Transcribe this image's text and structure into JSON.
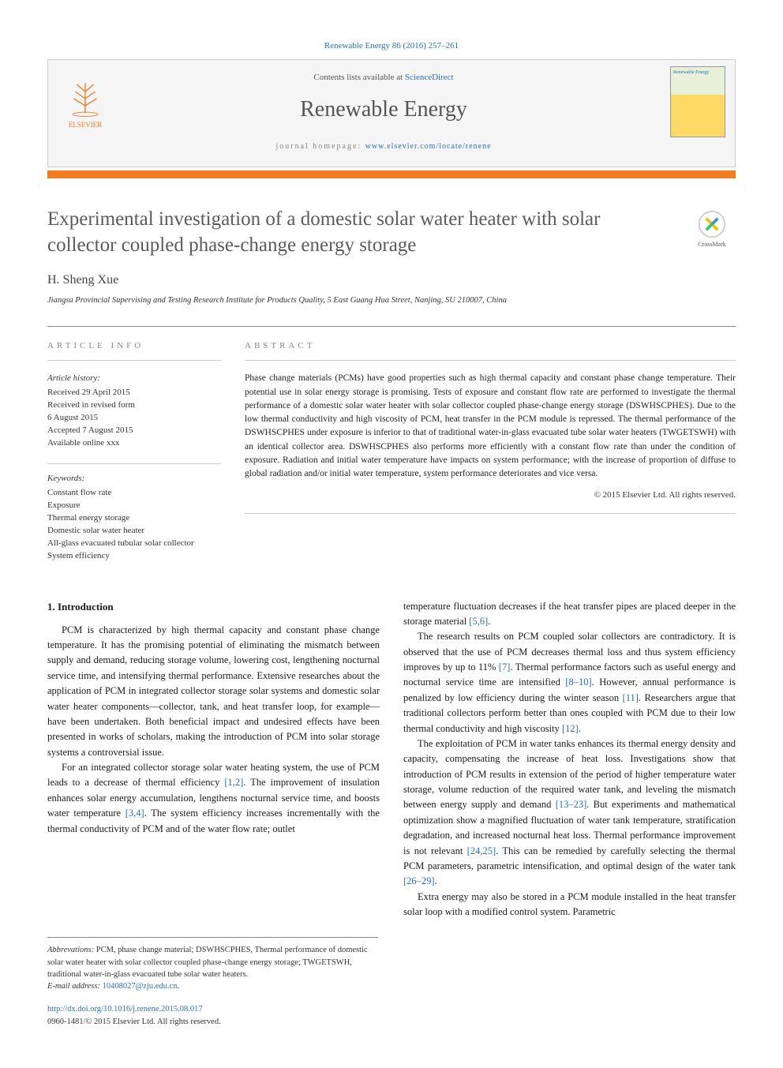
{
  "citation": {
    "text": "Renewable Energy 86 (2016) 257–261",
    "link_color": "#2a6fb5"
  },
  "header": {
    "contents_prefix": "Contents lists available at ",
    "contents_link": "ScienceDirect",
    "journal_name": "Renewable Energy",
    "homepage_prefix": "journal homepage: ",
    "homepage_link": "www.elsevier.com/locate/renene",
    "publisher_logo_label": "ELSEVIER",
    "cover_label": "Renewable Energy"
  },
  "article": {
    "title": "Experimental investigation of a domestic solar water heater with solar collector coupled phase-change energy storage",
    "crossmark_label": "CrossMark",
    "author": "H. Sheng Xue",
    "affiliation": "Jiangsu Provincial Supervising and Testing Research Institute for Products Quality, 5 East Guang Hua Street, Nanjing, SU 210007, China"
  },
  "info": {
    "heading": "ARTICLE INFO",
    "history_label": "Article history:",
    "history": [
      "Received 29 April 2015",
      "Received in revised form",
      "6 August 2015",
      "Accepted 7 August 2015",
      "Available online xxx"
    ],
    "keywords_label": "Keywords:",
    "keywords": [
      "Constant flow rate",
      "Exposure",
      "Thermal energy storage",
      "Domestic solar water heater",
      "All-glass evacuated tubular solar collector",
      "System efficiency"
    ]
  },
  "abstract": {
    "heading": "ABSTRACT",
    "text": "Phase change materials (PCMs) have good properties such as high thermal capacity and constant phase change temperature. Their potential use in solar energy storage is promising. Tests of exposure and constant flow rate are performed to investigate the thermal performance of a domestic solar water heater with solar collector coupled phase-change energy storage (DSWHSCPHES). Due to the low thermal conductivity and high viscosity of PCM, heat transfer in the PCM module is repressed. The thermal performance of the DSWHSCPHES under exposure is inferior to that of traditional water-in-glass evacuated tube solar water heaters (TWGETSWH) with an identical collector area. DSWHSCPHES also performs more efficiently with a constant flow rate than under the condition of exposure. Radiation and initial water temperature have impacts on system performance; with the increase of proportion of diffuse to global radiation and/or initial water temperature, system performance deteriorates and vice versa.",
    "copyright": "© 2015 Elsevier Ltd. All rights reserved."
  },
  "body": {
    "section_heading": "1. Introduction",
    "col1": {
      "p1": "PCM is characterized by high thermal capacity and constant phase change temperature. It has the promising potential of eliminating the mismatch between supply and demand, reducing storage volume, lowering cost, lengthening nocturnal service time, and intensifying thermal performance. Extensive researches about the application of PCM in integrated collector storage solar systems and domestic solar water heater components—collector, tank, and heat transfer loop, for example—have been undertaken. Both beneficial impact and undesired effects have been presented in works of scholars, making the introduction of PCM into solar storage systems a controversial issue.",
      "p2_a": "For an integrated collector storage solar water heating system, the use of PCM leads to a decrease of thermal efficiency ",
      "p2_ref1": "[1,2]",
      "p2_b": ". The improvement of insulation enhances solar energy accumulation, lengthens nocturnal service time, and boosts water temperature ",
      "p2_ref2": "[3,4]",
      "p2_c": ". The system efficiency increases incrementally with the thermal conductivity of PCM and of the water flow rate; outlet"
    },
    "col2": {
      "p1_a": "temperature fluctuation decreases if the heat transfer pipes are placed deeper in the storage material ",
      "p1_ref1": "[5,6]",
      "p1_b": ".",
      "p2_a": "The research results on PCM coupled solar collectors are contradictory. It is observed that the use of PCM decreases thermal loss and thus system efficiency improves by up to 11% ",
      "p2_ref1": "[7]",
      "p2_b": ". Thermal performance factors such as useful energy and nocturnal service time are intensified ",
      "p2_ref2": "[8–10]",
      "p2_c": ". However, annual performance is penalized by low efficiency during the winter season ",
      "p2_ref3": "[11]",
      "p2_d": ". Researchers argue that traditional collectors perform better than ones coupled with PCM due to their low thermal conductivity and high viscosity ",
      "p2_ref4": "[12]",
      "p2_e": ".",
      "p3_a": "The exploitation of PCM in water tanks enhances its thermal energy density and capacity, compensating the increase of heat loss. Investigations show that introduction of PCM results in extension of the period of higher temperature water storage, volume reduction of the required water tank, and leveling the mismatch between energy supply and demand ",
      "p3_ref1": "[13–23]",
      "p3_b": ". But experiments and mathematical optimization show a magnified fluctuation of water tank temperature, stratification degradation, and increased nocturnal heat loss. Thermal performance improvement is not relevant ",
      "p3_ref2": "[24,25]",
      "p3_c": ". This can be remedied by carefully selecting the thermal PCM parameters, parametric intensification, and optimal design of the water tank ",
      "p3_ref3": "[26–29]",
      "p3_d": ".",
      "p4": "Extra energy may also be stored in a PCM module installed in the heat transfer solar loop with a modified control system. Parametric"
    }
  },
  "footnotes": {
    "abbrev_label": "Abbrevations:",
    "abbrev_text": " PCM, phase change material; DSWHSCPHES, Thermal performance of domestic solar water heater with solar collector coupled phase-change energy storage; TWGETSWH, traditional water-in-glass evacuated tube solar water heaters.",
    "email_label": "E-mail address: ",
    "email": "10408027@zju.edu.cn",
    "email_suffix": "."
  },
  "doi": {
    "link": "http://dx.doi.org/10.1016/j.renene.2015.08.017",
    "issn_line": "0960-1481/© 2015 Elsevier Ltd. All rights reserved."
  },
  "colors": {
    "link": "#2a6fb5",
    "accent": "#f47b20",
    "text": "#1a1a1a",
    "muted": "#888888"
  }
}
